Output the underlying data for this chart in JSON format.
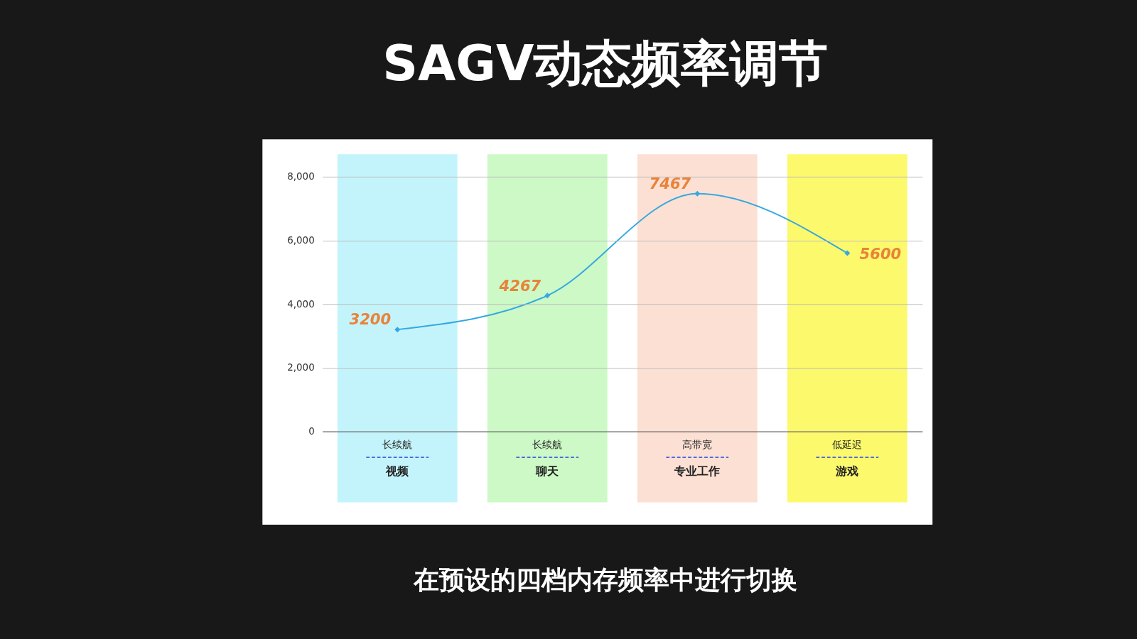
{
  "chart_data": {
    "type": "line",
    "title": "SAGV动态频率调节",
    "categories": [
      "视频",
      "聊天",
      "专业工作",
      "游戏"
    ],
    "series": [
      {
        "color": "#35a8e0",
        "values": [
          3200,
          4267,
          7467,
          5600
        ]
      }
    ],
    "data_labels": true,
    "marker": "diamond",
    "ylim": [
      0,
      8000
    ],
    "yticks": [
      0,
      {
        "value": 2000,
        "label": "2,000"
      },
      {
        "value": 4000,
        "label": "4,000"
      },
      {
        "value": 6000,
        "label": "6,000"
      },
      {
        "value": 8000,
        "label": "8,000"
      }
    ],
    "grid": "y",
    "bands": [
      {
        "axis": "x",
        "from": "视频",
        "to": "视频",
        "color": "#c4f4fb"
      },
      {
        "axis": "x",
        "from": "聊天",
        "to": "聊天",
        "color": "#ccf9c6"
      },
      {
        "axis": "x",
        "from": "专业工作",
        "to": "专业工作",
        "color": "#fde0d4"
      },
      {
        "axis": "x",
        "from": "游戏",
        "to": "游戏",
        "color": "#fdf96c"
      }
    ],
    "annotations": [
      "长续航",
      "长续航",
      "高带宽",
      "低延迟",
      "在预设的四档内存频率中进行切换"
    ]
  }
}
